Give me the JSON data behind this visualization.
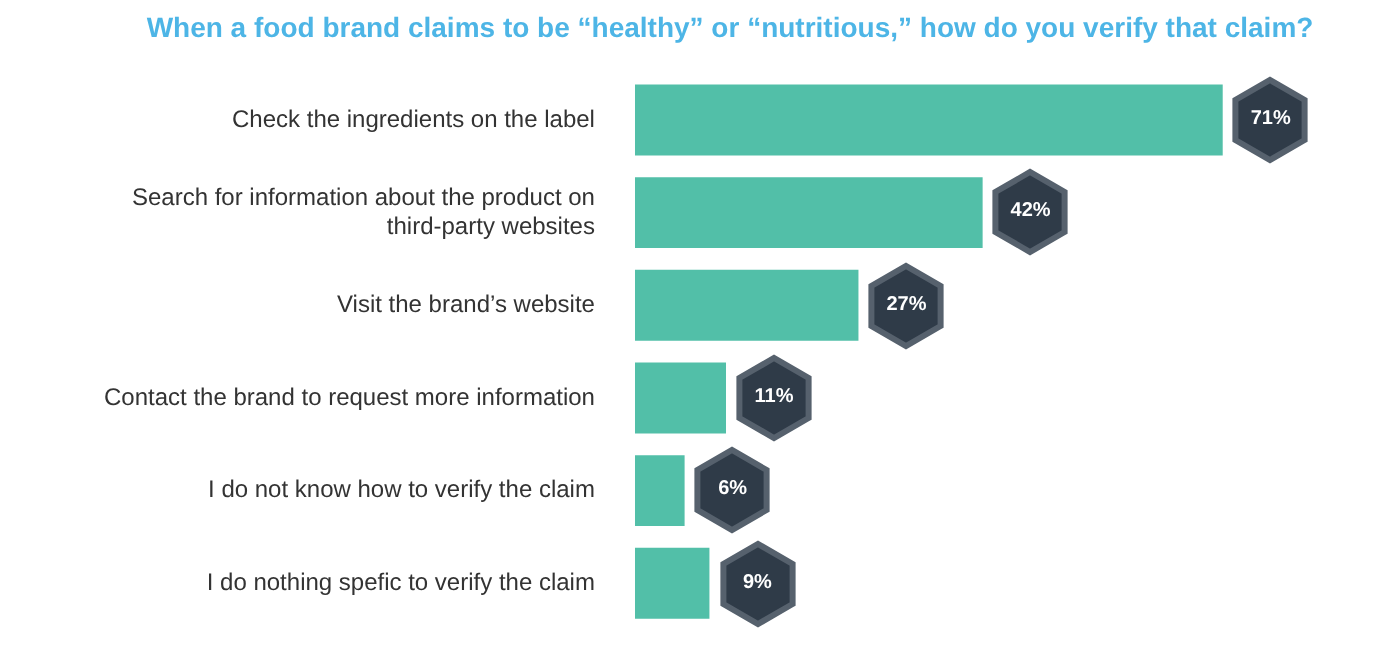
{
  "chart_data": {
    "type": "bar",
    "orientation": "horizontal",
    "title": "When a food brand claims to be “healthy” or “nutritious,” how do you verify that claim?",
    "categories": [
      "Check the ingredients on the label",
      "Search for information about the product on third-party websites",
      "Visit the brand’s website",
      "Contact the brand to request more information",
      "I do not know how to verify the claim",
      "I do nothing spefic to verify the claim"
    ],
    "values": [
      71,
      42,
      27,
      11,
      6,
      9
    ],
    "value_labels": [
      "71%",
      "42%",
      "27%",
      "11%",
      "6%",
      "9%"
    ],
    "color": "#52bfa8",
    "tick_labels": "y",
    "grid": false,
    "legend": false
  }
}
